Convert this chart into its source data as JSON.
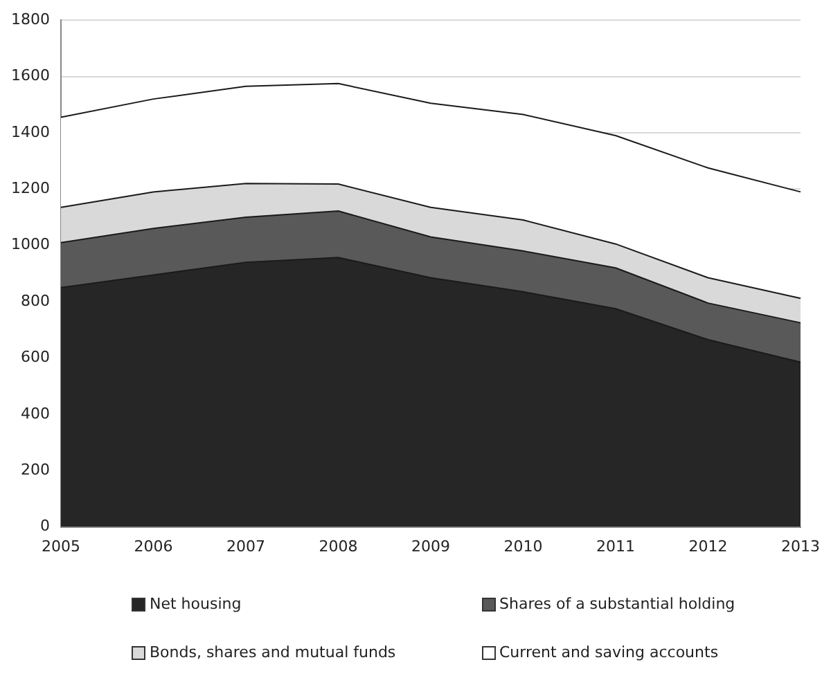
{
  "chart_data": {
    "type": "area",
    "stacked": true,
    "categories": [
      "2005",
      "2006",
      "2007",
      "2008",
      "2009",
      "2010",
      "2011",
      "2012",
      "2013"
    ],
    "series": [
      {
        "name": "Net housing",
        "color": "#262626",
        "values": [
          850,
          895,
          940,
          957,
          885,
          835,
          775,
          665,
          585
        ]
      },
      {
        "name": "Shares of a substantial holding",
        "color": "#595959",
        "values": [
          160,
          165,
          160,
          165,
          145,
          145,
          145,
          130,
          140
        ]
      },
      {
        "name": "Bonds, shares and mutual funds",
        "color": "#d9d9d9",
        "values": [
          125,
          130,
          120,
          96,
          105,
          110,
          85,
          90,
          87
        ]
      },
      {
        "name": "Current and saving accounts",
        "color": "#ffffff",
        "values": [
          320,
          330,
          345,
          357,
          370,
          375,
          385,
          390,
          378
        ]
      }
    ],
    "ylim": [
      0,
      1800
    ],
    "yticks": [
      0,
      200,
      400,
      600,
      800,
      1000,
      1200,
      1400,
      1600,
      1800
    ],
    "grid": "y",
    "legend": "bottom"
  }
}
